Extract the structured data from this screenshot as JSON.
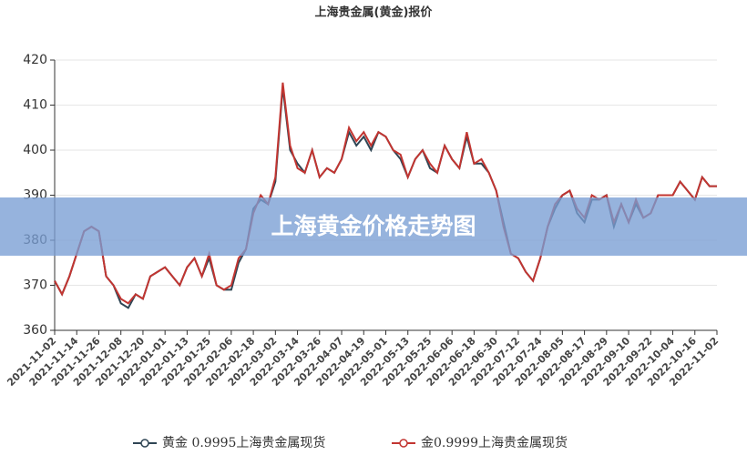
{
  "chart_data": {
    "type": "line",
    "title": "上海贵金属(黄金)报价",
    "categories": [
      "2021-11-02",
      null,
      null,
      "2021-11-14",
      null,
      null,
      "2021-11-26",
      null,
      null,
      "2021-12-08",
      null,
      null,
      "2021-12-20",
      null,
      null,
      "2022-01-01",
      null,
      null,
      "2022-01-13",
      null,
      null,
      "2022-01-25",
      null,
      null,
      "2022-02-06",
      null,
      null,
      "2022-02-18",
      null,
      null,
      "2022-03-02",
      null,
      null,
      "2022-03-14",
      null,
      null,
      "2022-03-26",
      null,
      null,
      "2022-04-07",
      null,
      null,
      "2022-04-19",
      null,
      null,
      "2022-05-01",
      null,
      null,
      "2022-05-13",
      null,
      null,
      "2022-05-25",
      null,
      null,
      "2022-06-06",
      null,
      null,
      "2022-06-18",
      null,
      null,
      "2022-06-30",
      null,
      null,
      "2022-07-12",
      null,
      null,
      "2022-07-24",
      null,
      null,
      "2022-08-05",
      null,
      null,
      "2022-08-17",
      null,
      null,
      "2022-08-29",
      null,
      null,
      "2022-09-10",
      null,
      null,
      "2022-09-22",
      null,
      null,
      "2022-10-04",
      null,
      null,
      "2022-10-16",
      null,
      null,
      "2022-11-02"
    ],
    "series": [
      {
        "name": "黄金  0.9995上海贵金属现货",
        "color": "#2f4554",
        "values": [
          371,
          368,
          372,
          377,
          382,
          383,
          382,
          372,
          370,
          366,
          365,
          368,
          367,
          372,
          373,
          374,
          372,
          370,
          374,
          376,
          372,
          376,
          370,
          369,
          369,
          375,
          378,
          387,
          389,
          388,
          393,
          414,
          400,
          397,
          395,
          400,
          394,
          396,
          395,
          398,
          404,
          401,
          403,
          400,
          404,
          403,
          400,
          398,
          394,
          398,
          400,
          396,
          395,
          401,
          398,
          396,
          403,
          397,
          397,
          395,
          391,
          384,
          377,
          376,
          373,
          371,
          376,
          383,
          387,
          390,
          391,
          386,
          384,
          389,
          389,
          390,
          383,
          388,
          384,
          388,
          385,
          386,
          390,
          390,
          390,
          393,
          391,
          389,
          394,
          392,
          392
        ]
      },
      {
        "name": "金0.9999上海贵金属现货",
        "color": "#c23531",
        "values": [
          371,
          368,
          372,
          377,
          382,
          383,
          382,
          372,
          370,
          367,
          366,
          368,
          367,
          372,
          373,
          374,
          372,
          370,
          374,
          376,
          372,
          377,
          370,
          369,
          370,
          376,
          378,
          386,
          390,
          388,
          394,
          415,
          401,
          396,
          395,
          400,
          394,
          396,
          395,
          398,
          405,
          402,
          404,
          401,
          404,
          403,
          400,
          399,
          394,
          398,
          400,
          397,
          395,
          401,
          398,
          396,
          404,
          397,
          398,
          395,
          391,
          383,
          377,
          376,
          373,
          371,
          376,
          383,
          388,
          390,
          391,
          387,
          385,
          390,
          389,
          390,
          384,
          388,
          384,
          389,
          385,
          386,
          390,
          390,
          390,
          393,
          391,
          389,
          394,
          392,
          392
        ]
      }
    ],
    "ylim": [
      360,
      420
    ],
    "yticks": [
      360,
      370,
      380,
      390,
      400,
      410,
      420
    ],
    "grid": true
  },
  "banner": "上海黄金价格走势图"
}
